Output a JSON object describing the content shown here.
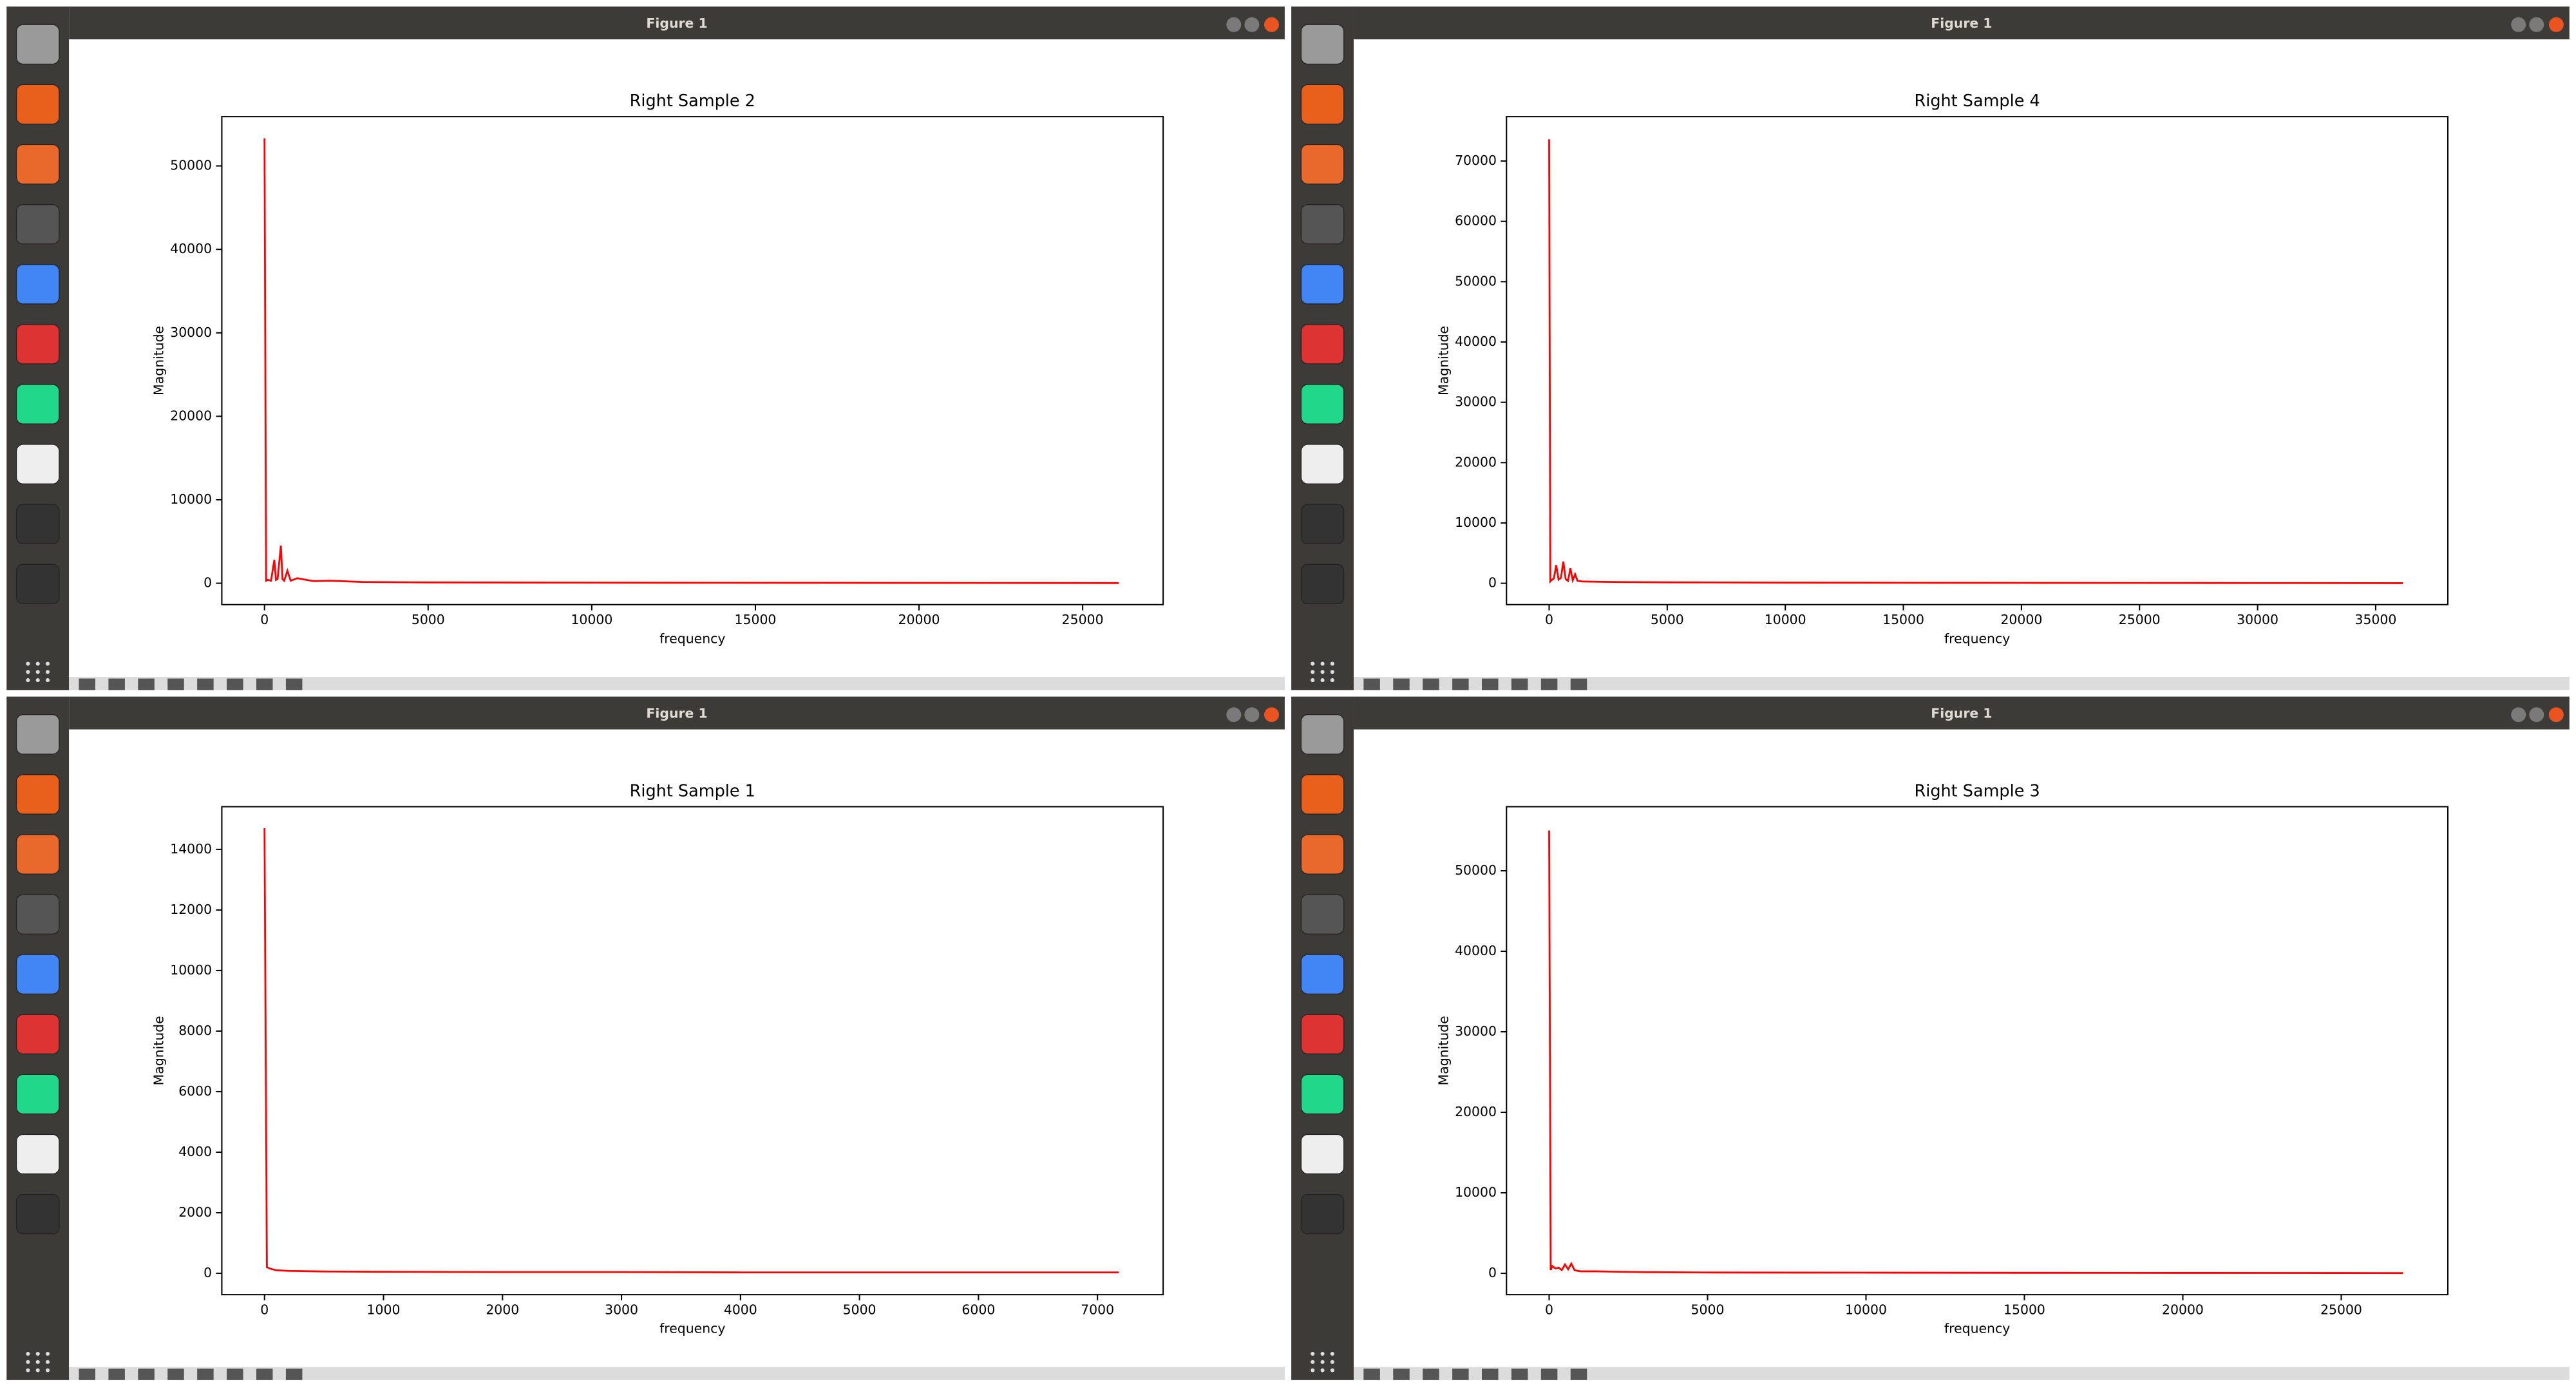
{
  "window_titles": [
    "Figure 1",
    "Figure 1",
    "Figure 1",
    "Figure 1"
  ],
  "chart_data": [
    {
      "type": "line",
      "title": "Right Sample 2",
      "x_label": "frequency",
      "y_label": "Magnitude",
      "color": "#ff0000",
      "x": [
        0,
        50,
        100,
        200,
        300,
        350,
        400,
        500,
        550,
        600,
        700,
        800,
        1000,
        1500,
        2000,
        3000,
        5000,
        8000,
        12000,
        16000,
        20000,
        24000,
        26100
      ],
      "values": [
        53300,
        300,
        400,
        300,
        2800,
        400,
        500,
        4500,
        500,
        300,
        1500,
        300,
        600,
        250,
        300,
        150,
        100,
        80,
        60,
        50,
        40,
        30,
        20
      ],
      "xlim": [
        -1305,
        27460
      ],
      "xticks": [
        0,
        5000,
        10000,
        15000,
        20000,
        25000
      ],
      "ylim": [
        -2560,
        55900
      ],
      "yticks": [
        0,
        10000,
        20000,
        30000,
        40000,
        50000
      ]
    },
    {
      "type": "line",
      "title": "Right Sample 4",
      "x_label": "frequency",
      "y_label": "Magnitude",
      "color": "#ff0000",
      "x": [
        0,
        50,
        100,
        200,
        300,
        400,
        500,
        600,
        700,
        800,
        900,
        1000,
        1100,
        1200,
        1400,
        2000,
        3000,
        5000,
        10000,
        15000,
        20000,
        25000,
        30000,
        36150
      ],
      "values": [
        73600,
        300,
        500,
        800,
        3000,
        600,
        900,
        3600,
        700,
        400,
        2500,
        500,
        1500,
        400,
        300,
        250,
        200,
        150,
        100,
        80,
        60,
        50,
        40,
        20
      ],
      "xlim": [
        -1806,
        38056
      ],
      "xticks": [
        0,
        5000,
        10000,
        15000,
        20000,
        25000,
        30000,
        35000
      ],
      "ylim": [
        -3540,
        77360
      ],
      "yticks": [
        0,
        10000,
        20000,
        30000,
        40000,
        50000,
        60000,
        70000
      ]
    },
    {
      "type": "line",
      "title": "Right Sample 1",
      "x_label": "frequency",
      "y_label": "Magnitude",
      "color": "#ff0000",
      "x": [
        0,
        20,
        50,
        100,
        200,
        500,
        1000,
        2000,
        3000,
        4000,
        5000,
        6000,
        7180
      ],
      "values": [
        14700,
        200,
        150,
        100,
        80,
        60,
        50,
        40,
        40,
        30,
        30,
        30,
        30
      ],
      "xlim": [
        -359,
        7552
      ],
      "xticks": [
        0,
        1000,
        2000,
        3000,
        4000,
        5000,
        6000,
        7000
      ],
      "ylim": [
        -705,
        15411
      ],
      "yticks": [
        0,
        2000,
        4000,
        6000,
        8000,
        10000,
        12000,
        14000
      ]
    },
    {
      "type": "line",
      "title": "Right Sample 3",
      "x_label": "frequency",
      "y_label": "Magnitude",
      "color": "#ff0000",
      "x": [
        0,
        50,
        100,
        200,
        300,
        400,
        500,
        600,
        700,
        800,
        900,
        1000,
        1500,
        2000,
        3000,
        5000,
        10000,
        15000,
        20000,
        25000,
        26950
      ],
      "values": [
        55000,
        400,
        900,
        600,
        700,
        400,
        1100,
        500,
        1200,
        400,
        300,
        250,
        250,
        200,
        150,
        100,
        80,
        60,
        50,
        40,
        30
      ],
      "xlim": [
        -1346,
        28364
      ],
      "xticks": [
        0,
        5000,
        10000,
        15000,
        20000,
        25000
      ],
      "ylim": [
        -2650,
        57960
      ],
      "yticks": [
        0,
        10000,
        20000,
        30000,
        40000,
        50000
      ]
    }
  ]
}
